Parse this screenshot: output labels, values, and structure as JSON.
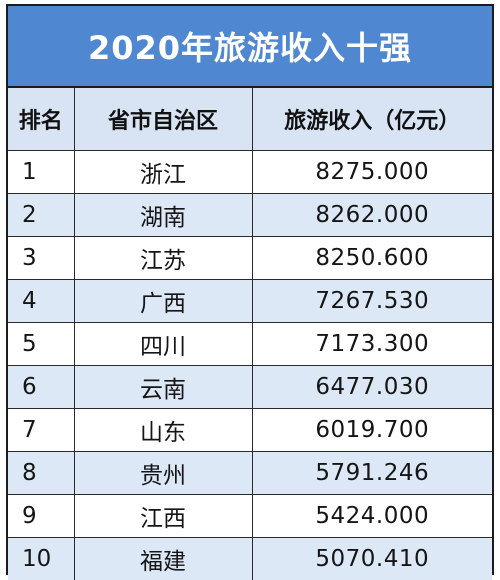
{
  "title": "2020年旅游收入十强",
  "headers": {
    "rank": "排名",
    "province": "省市自治区",
    "income": "旅游收入（亿元）"
  },
  "rows": [
    {
      "rank": "1",
      "province": "浙江",
      "income": "8275.000"
    },
    {
      "rank": "2",
      "province": "湖南",
      "income": "8262.000"
    },
    {
      "rank": "3",
      "province": "江苏",
      "income": "8250.600"
    },
    {
      "rank": "4",
      "province": "广西",
      "income": "7267.530"
    },
    {
      "rank": "5",
      "province": "四川",
      "income": "7173.300"
    },
    {
      "rank": "6",
      "province": "云南",
      "income": "6477.030"
    },
    {
      "rank": "7",
      "province": "山东",
      "income": "6019.700"
    },
    {
      "rank": "8",
      "province": "贵州",
      "income": "5791.246"
    },
    {
      "rank": "9",
      "province": "江西",
      "income": "5424.000"
    },
    {
      "rank": "10",
      "province": "福建",
      "income": "5070.410"
    }
  ],
  "colors": {
    "title_background": "#4f87d0",
    "title_text": "#ffffff",
    "header_background": "#d8e4f3",
    "alt_row_background": "#dde8f6",
    "border": "#1c1c1c"
  }
}
